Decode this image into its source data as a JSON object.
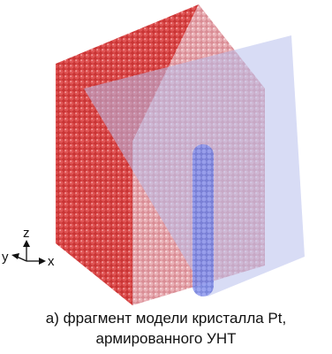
{
  "figure": {
    "axes": {
      "z": "z",
      "y": "y",
      "x": "x"
    },
    "caption": [
      "а) фрагмент модели кристалла Pt,",
      "армированного УНТ"
    ]
  }
}
